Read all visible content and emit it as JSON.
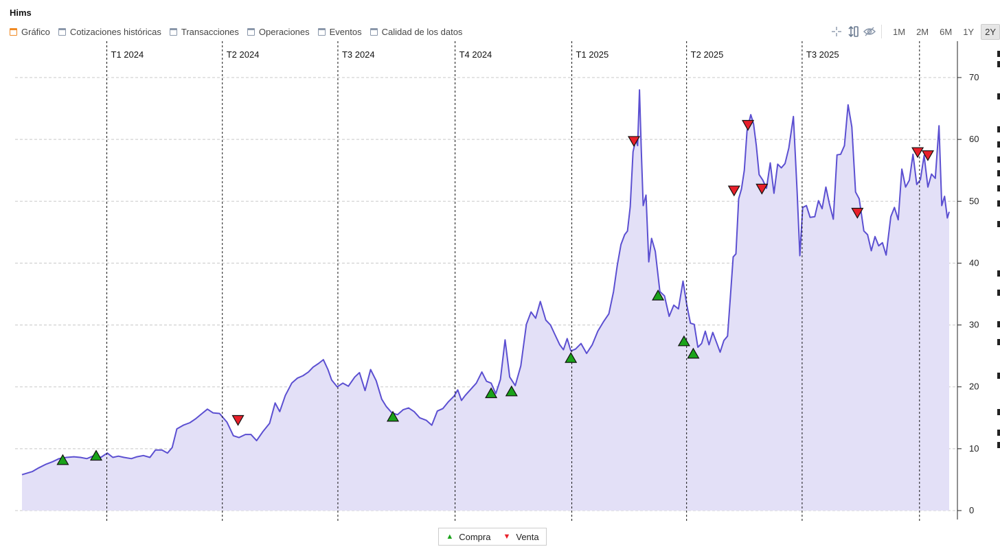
{
  "header": {
    "title": "Hims"
  },
  "tabs": [
    {
      "label": "Gráfico",
      "active": true
    },
    {
      "label": "Cotizaciones históricas",
      "active": false
    },
    {
      "label": "Transacciones",
      "active": false
    },
    {
      "label": "Operaciones",
      "active": false
    },
    {
      "label": "Eventos",
      "active": false
    },
    {
      "label": "Calidad de los datos",
      "active": false
    }
  ],
  "toolbar": {
    "icons": [
      "crosshair-icon",
      "vertical-scale-icon",
      "hide-icon"
    ],
    "ranges": [
      {
        "label": "1M",
        "active": false
      },
      {
        "label": "2M",
        "active": false
      },
      {
        "label": "6M",
        "active": false
      },
      {
        "label": "1Y",
        "active": false
      },
      {
        "label": "2Y",
        "active": true
      }
    ]
  },
  "legend": {
    "buy_label": "Compra",
    "sell_label": "Venta"
  },
  "colors": {
    "line": "#5b4fd1",
    "fill": "#e3e0f7",
    "buy": "#1aa31a",
    "sell": "#e8202a",
    "active_tab": "#f08a24"
  },
  "chart_data": {
    "type": "area",
    "x_start": "2023-10",
    "x_end": "2025-10",
    "ylim": [
      0,
      70
    ],
    "yticks": [
      0,
      10,
      20,
      30,
      40,
      50,
      60,
      70
    ],
    "y_axis_position": "right",
    "grid": "horizontal dashed",
    "quarters": [
      {
        "label": "T1 2024",
        "x": 0.0915
      },
      {
        "label": "T2 2024",
        "x": 0.2161
      },
      {
        "label": "T3 2024",
        "x": 0.3407
      },
      {
        "label": "T4 2024",
        "x": 0.4671
      },
      {
        "label": "T1 2025",
        "x": 0.593
      },
      {
        "label": "T2 2025",
        "x": 0.7168
      },
      {
        "label": "T3 2025",
        "x": 0.8414
      },
      {
        "label": "",
        "x": 0.968
      }
    ],
    "series": [
      {
        "points": [
          [
            0.0,
            5.8
          ],
          [
            0.011,
            6.3
          ],
          [
            0.018,
            6.9
          ],
          [
            0.026,
            7.5
          ],
          [
            0.033,
            7.9
          ],
          [
            0.04,
            8.4
          ],
          [
            0.048,
            8.6
          ],
          [
            0.056,
            8.7
          ],
          [
            0.063,
            8.6
          ],
          [
            0.07,
            8.4
          ],
          [
            0.078,
            8.9
          ],
          [
            0.085,
            8.6
          ],
          [
            0.092,
            9.3
          ],
          [
            0.098,
            8.6
          ],
          [
            0.104,
            8.8
          ],
          [
            0.11,
            8.6
          ],
          [
            0.118,
            8.4
          ],
          [
            0.124,
            8.7
          ],
          [
            0.131,
            8.9
          ],
          [
            0.138,
            8.6
          ],
          [
            0.144,
            9.8
          ],
          [
            0.151,
            9.8
          ],
          [
            0.157,
            9.3
          ],
          [
            0.162,
            10.2
          ],
          [
            0.167,
            13.2
          ],
          [
            0.174,
            13.8
          ],
          [
            0.181,
            14.2
          ],
          [
            0.187,
            14.8
          ],
          [
            0.195,
            15.8
          ],
          [
            0.2,
            16.4
          ],
          [
            0.206,
            15.8
          ],
          [
            0.213,
            15.7
          ],
          [
            0.221,
            14.3
          ],
          [
            0.228,
            12.1
          ],
          [
            0.234,
            11.8
          ],
          [
            0.241,
            12.3
          ],
          [
            0.247,
            12.3
          ],
          [
            0.253,
            11.3
          ],
          [
            0.26,
            12.8
          ],
          [
            0.267,
            14.1
          ],
          [
            0.273,
            17.4
          ],
          [
            0.278,
            16.0
          ],
          [
            0.284,
            18.6
          ],
          [
            0.291,
            20.6
          ],
          [
            0.297,
            21.4
          ],
          [
            0.303,
            21.8
          ],
          [
            0.309,
            22.4
          ],
          [
            0.314,
            23.2
          ],
          [
            0.32,
            23.8
          ],
          [
            0.325,
            24.4
          ],
          [
            0.33,
            22.8
          ],
          [
            0.334,
            21.1
          ],
          [
            0.34,
            20.0
          ],
          [
            0.346,
            20.6
          ],
          [
            0.352,
            20.1
          ],
          [
            0.359,
            21.6
          ],
          [
            0.364,
            22.3
          ],
          [
            0.37,
            19.4
          ],
          [
            0.376,
            22.8
          ],
          [
            0.382,
            21.0
          ],
          [
            0.388,
            18.0
          ],
          [
            0.393,
            16.8
          ],
          [
            0.399,
            15.8
          ],
          [
            0.405,
            15.5
          ],
          [
            0.411,
            16.3
          ],
          [
            0.417,
            16.6
          ],
          [
            0.423,
            16.0
          ],
          [
            0.429,
            15.0
          ],
          [
            0.436,
            14.6
          ],
          [
            0.442,
            13.8
          ],
          [
            0.448,
            16.1
          ],
          [
            0.454,
            16.5
          ],
          [
            0.46,
            17.6
          ],
          [
            0.466,
            18.5
          ],
          [
            0.47,
            19.5
          ],
          [
            0.474,
            17.8
          ],
          [
            0.478,
            18.6
          ],
          [
            0.484,
            19.6
          ],
          [
            0.49,
            20.6
          ],
          [
            0.496,
            22.4
          ],
          [
            0.501,
            20.9
          ],
          [
            0.506,
            20.6
          ],
          [
            0.511,
            18.9
          ],
          [
            0.516,
            21.2
          ],
          [
            0.521,
            27.6
          ],
          [
            0.526,
            21.6
          ],
          [
            0.532,
            20.2
          ],
          [
            0.538,
            23.4
          ],
          [
            0.544,
            30.1
          ],
          [
            0.549,
            32.1
          ],
          [
            0.554,
            31.1
          ],
          [
            0.559,
            33.8
          ],
          [
            0.565,
            30.8
          ],
          [
            0.57,
            30.0
          ],
          [
            0.575,
            28.4
          ],
          [
            0.58,
            26.8
          ],
          [
            0.584,
            26.0
          ],
          [
            0.588,
            27.8
          ],
          [
            0.592,
            25.8
          ],
          [
            0.597,
            26.1
          ],
          [
            0.603,
            27.0
          ],
          [
            0.609,
            25.4
          ],
          [
            0.615,
            26.8
          ],
          [
            0.621,
            29.0
          ],
          [
            0.627,
            30.5
          ],
          [
            0.633,
            31.8
          ],
          [
            0.638,
            35.4
          ],
          [
            0.642,
            39.6
          ],
          [
            0.646,
            43.0
          ],
          [
            0.65,
            44.6
          ],
          [
            0.653,
            45.2
          ],
          [
            0.656,
            49.1
          ],
          [
            0.659,
            58.0
          ],
          [
            0.662,
            60.0
          ],
          [
            0.664,
            59.0
          ],
          [
            0.666,
            68.0
          ],
          [
            0.668,
            58.0
          ],
          [
            0.67,
            49.3
          ],
          [
            0.673,
            51.0
          ],
          [
            0.676,
            40.2
          ],
          [
            0.679,
            44.0
          ],
          [
            0.683,
            41.9
          ],
          [
            0.688,
            35.4
          ],
          [
            0.693,
            34.7
          ],
          [
            0.698,
            31.4
          ],
          [
            0.703,
            33.2
          ],
          [
            0.708,
            32.6
          ],
          [
            0.713,
            37.1
          ],
          [
            0.717,
            33.3
          ],
          [
            0.721,
            30.3
          ],
          [
            0.725,
            30.1
          ],
          [
            0.729,
            26.4
          ],
          [
            0.733,
            27.0
          ],
          [
            0.737,
            29.0
          ],
          [
            0.741,
            26.8
          ],
          [
            0.745,
            28.8
          ],
          [
            0.749,
            27.2
          ],
          [
            0.753,
            25.6
          ],
          [
            0.757,
            27.5
          ],
          [
            0.761,
            28.2
          ],
          [
            0.764,
            34.5
          ],
          [
            0.767,
            41.0
          ],
          [
            0.77,
            41.5
          ],
          [
            0.773,
            50.4
          ],
          [
            0.776,
            52.0
          ],
          [
            0.779,
            55.0
          ],
          [
            0.782,
            61.4
          ],
          [
            0.786,
            64.0
          ],
          [
            0.789,
            62.5
          ],
          [
            0.792,
            59.0
          ],
          [
            0.795,
            54.3
          ],
          [
            0.799,
            53.4
          ],
          [
            0.803,
            52.1
          ],
          [
            0.807,
            56.2
          ],
          [
            0.811,
            51.3
          ],
          [
            0.815,
            56.0
          ],
          [
            0.819,
            55.4
          ],
          [
            0.823,
            56.1
          ],
          [
            0.827,
            58.6
          ],
          [
            0.832,
            63.7
          ],
          [
            0.836,
            51.6
          ],
          [
            0.839,
            41.2
          ],
          [
            0.842,
            49.0
          ],
          [
            0.846,
            49.3
          ],
          [
            0.85,
            47.4
          ],
          [
            0.855,
            47.5
          ],
          [
            0.859,
            50.1
          ],
          [
            0.863,
            48.8
          ],
          [
            0.867,
            52.3
          ],
          [
            0.871,
            49.5
          ],
          [
            0.875,
            47.1
          ],
          [
            0.879,
            57.5
          ],
          [
            0.883,
            57.6
          ],
          [
            0.887,
            59.0
          ],
          [
            0.891,
            65.6
          ],
          [
            0.895,
            62.0
          ],
          [
            0.899,
            51.5
          ],
          [
            0.903,
            50.4
          ],
          [
            0.908,
            45.2
          ],
          [
            0.912,
            44.6
          ],
          [
            0.916,
            42.0
          ],
          [
            0.92,
            44.3
          ],
          [
            0.924,
            42.8
          ],
          [
            0.928,
            43.3
          ],
          [
            0.932,
            41.3
          ],
          [
            0.937,
            47.5
          ],
          [
            0.941,
            49.0
          ],
          [
            0.945,
            47.0
          ],
          [
            0.949,
            55.2
          ],
          [
            0.953,
            52.3
          ],
          [
            0.957,
            53.4
          ],
          [
            0.961,
            57.6
          ],
          [
            0.965,
            52.7
          ],
          [
            0.969,
            53.5
          ],
          [
            0.973,
            57.4
          ],
          [
            0.977,
            52.3
          ],
          [
            0.981,
            54.4
          ],
          [
            0.985,
            53.7
          ],
          [
            0.989,
            62.2
          ],
          [
            0.992,
            49.3
          ],
          [
            0.995,
            50.8
          ],
          [
            0.998,
            47.3
          ],
          [
            1.0,
            48.3
          ]
        ]
      }
    ],
    "buy_markers": [
      {
        "x": 0.044,
        "y": 8.0
      },
      {
        "x": 0.08,
        "y": 8.7
      },
      {
        "x": 0.4,
        "y": 15.0
      },
      {
        "x": 0.506,
        "y": 18.8
      },
      {
        "x": 0.528,
        "y": 19.1
      },
      {
        "x": 0.592,
        "y": 24.5
      },
      {
        "x": 0.686,
        "y": 34.6
      },
      {
        "x": 0.714,
        "y": 27.2
      },
      {
        "x": 0.724,
        "y": 25.2
      }
    ],
    "sell_markers": [
      {
        "x": 0.233,
        "y": 14.7
      },
      {
        "x": 0.66,
        "y": 59.8
      },
      {
        "x": 0.768,
        "y": 51.8
      },
      {
        "x": 0.783,
        "y": 62.4
      },
      {
        "x": 0.798,
        "y": 52.1
      },
      {
        "x": 0.901,
        "y": 48.2
      },
      {
        "x": 0.966,
        "y": 58.0
      },
      {
        "x": 0.977,
        "y": 57.5
      }
    ]
  }
}
